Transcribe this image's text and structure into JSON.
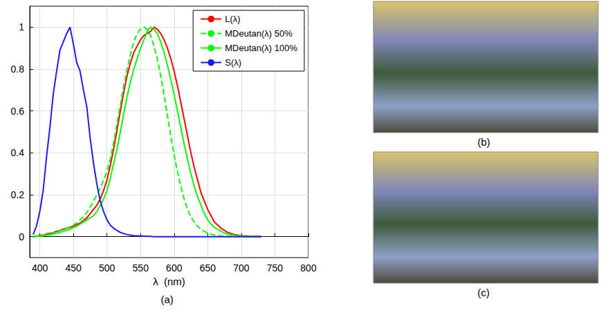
{
  "chart_data": {
    "type": "line",
    "x_label": "λ  (nm)",
    "caption": "(a)",
    "xlim": [
      385,
      800
    ],
    "xticks": [
      400,
      450,
      500,
      550,
      600,
      650,
      700,
      750,
      800
    ],
    "ylim": [
      -0.1,
      1.1
    ],
    "yticks": [
      0,
      0.2,
      0.4,
      0.6,
      0.8,
      1
    ],
    "grid": true,
    "legend": "upper right",
    "x": [
      390,
      395,
      400,
      405,
      410,
      415,
      420,
      425,
      430,
      435,
      440,
      445,
      450,
      455,
      460,
      465,
      470,
      475,
      480,
      485,
      490,
      495,
      500,
      505,
      510,
      515,
      520,
      525,
      530,
      535,
      540,
      545,
      550,
      555,
      560,
      565,
      570,
      575,
      580,
      585,
      590,
      595,
      600,
      605,
      610,
      615,
      620,
      625,
      630,
      635,
      640,
      645,
      650,
      655,
      660,
      665,
      670,
      675,
      680,
      685,
      690,
      695,
      700,
      705,
      710,
      715,
      720,
      725,
      730
    ],
    "series": [
      {
        "name": "L(λ)",
        "color": "#ff0000",
        "line_style": "solid",
        "values": [
          0,
          0.003,
          0.005,
          0.008,
          0.012,
          0.016,
          0.02,
          0.025,
          0.03,
          0.035,
          0.04,
          0.045,
          0.05,
          0.057,
          0.065,
          0.077,
          0.09,
          0.11,
          0.13,
          0.15,
          0.18,
          0.22,
          0.27,
          0.34,
          0.42,
          0.51,
          0.6,
          0.69,
          0.77,
          0.83,
          0.88,
          0.91,
          0.94,
          0.96,
          0.97,
          0.98,
          1.0,
          0.99,
          0.97,
          0.94,
          0.9,
          0.85,
          0.79,
          0.72,
          0.64,
          0.56,
          0.48,
          0.4,
          0.33,
          0.27,
          0.21,
          0.17,
          0.13,
          0.1,
          0.07,
          0.055,
          0.04,
          0.03,
          0.02,
          0.015,
          0.01,
          0.007,
          0.005,
          0.004,
          0.003,
          0.002,
          0.001,
          0.001,
          0
        ]
      },
      {
        "name": "MDeutan(λ) 50%",
        "color": "#00ff00",
        "line_style": "dashed",
        "values": [
          0,
          0.002,
          0.004,
          0.007,
          0.01,
          0.014,
          0.018,
          0.023,
          0.028,
          0.034,
          0.04,
          0.047,
          0.055,
          0.065,
          0.08,
          0.095,
          0.115,
          0.14,
          0.17,
          0.2,
          0.23,
          0.27,
          0.31,
          0.37,
          0.45,
          0.54,
          0.63,
          0.72,
          0.8,
          0.87,
          0.93,
          0.97,
          0.99,
          1.0,
          0.99,
          0.96,
          0.91,
          0.85,
          0.77,
          0.68,
          0.58,
          0.48,
          0.39,
          0.31,
          0.24,
          0.18,
          0.13,
          0.095,
          0.07,
          0.05,
          0.035,
          0.025,
          0.017,
          0.012,
          0.008,
          0.005,
          0.003,
          0.002,
          0.001,
          0.001,
          0,
          0,
          0,
          0,
          0,
          0,
          0,
          0,
          0
        ]
      },
      {
        "name": "MDeutan(λ) 100%",
        "color": "#00ff00",
        "line_style": "solid",
        "values": [
          0,
          0.001,
          0.002,
          0.004,
          0.006,
          0.009,
          0.012,
          0.016,
          0.02,
          0.025,
          0.03,
          0.036,
          0.043,
          0.05,
          0.06,
          0.07,
          0.08,
          0.09,
          0.1,
          0.12,
          0.15,
          0.18,
          0.22,
          0.28,
          0.35,
          0.42,
          0.5,
          0.59,
          0.67,
          0.74,
          0.8,
          0.85,
          0.9,
          0.94,
          0.98,
          1.0,
          0.99,
          0.97,
          0.93,
          0.88,
          0.82,
          0.75,
          0.68,
          0.6,
          0.52,
          0.44,
          0.37,
          0.3,
          0.24,
          0.19,
          0.15,
          0.11,
          0.08,
          0.06,
          0.045,
          0.035,
          0.025,
          0.018,
          0.012,
          0.009,
          0.006,
          0.004,
          0.003,
          0.002,
          0.001,
          0.001,
          0,
          0,
          0
        ]
      },
      {
        "name": "S(λ)",
        "color": "#1a1aff",
        "line_style": "solid",
        "values": [
          0.01,
          0.05,
          0.12,
          0.22,
          0.38,
          0.52,
          0.68,
          0.79,
          0.89,
          0.93,
          0.97,
          1.0,
          0.92,
          0.83,
          0.79,
          0.7,
          0.62,
          0.47,
          0.35,
          0.25,
          0.17,
          0.12,
          0.08,
          0.055,
          0.04,
          0.03,
          0.02,
          0.015,
          0.01,
          0.007,
          0.005,
          0.004,
          0.003,
          0.002,
          0.002,
          0.001,
          0,
          0,
          0,
          0,
          0,
          0,
          0,
          0,
          0,
          0,
          0,
          0,
          0,
          0,
          0,
          0,
          0,
          0,
          0,
          0,
          0,
          0,
          0,
          0,
          0,
          0,
          0,
          0,
          0,
          0,
          0,
          0,
          0
        ]
      }
    ]
  },
  "images": [
    {
      "caption": "(b)"
    },
    {
      "caption": "(c)"
    }
  ]
}
